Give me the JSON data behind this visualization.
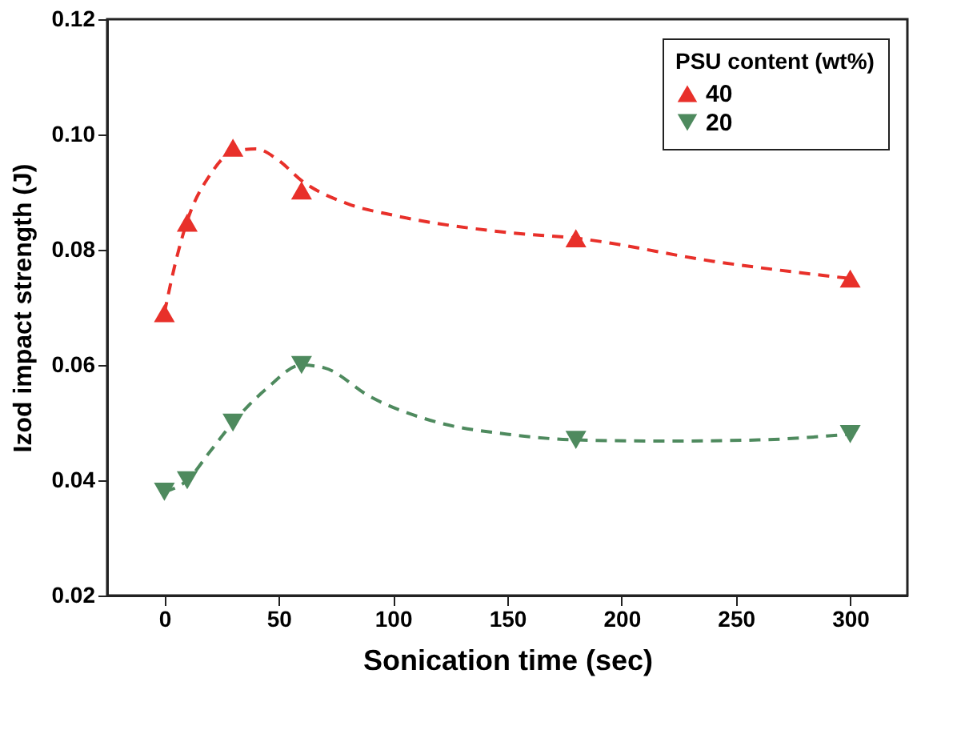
{
  "chart_data": {
    "type": "scatter",
    "xlabel": "Sonication time (sec)",
    "ylabel": "Izod impact strength (J)",
    "legend_title": "PSU content (wt%)",
    "xlim": [
      -25,
      325
    ],
    "xticks": [
      0,
      50,
      100,
      150,
      200,
      250,
      300
    ],
    "ylim": [
      0.02,
      0.12
    ],
    "yticks": [
      {
        "value": 0.02,
        "label": "0.02"
      },
      {
        "value": 0.04,
        "label": "0.04"
      },
      {
        "value": 0.06,
        "label": "0.06"
      },
      {
        "value": 0.08,
        "label": "0.08"
      },
      {
        "value": 0.1,
        "label": "0.10"
      },
      {
        "value": 0.12,
        "label": "0.12"
      }
    ],
    "grid": false,
    "legend": "top right",
    "series": [
      {
        "name": "40",
        "marker": "triangle",
        "color": "#e8302a",
        "x": [
          0,
          10,
          30,
          60,
          180,
          300
        ],
        "values": [
          0.069,
          0.0847,
          0.0977,
          0.0903,
          0.082,
          0.075
        ]
      },
      {
        "name": "20",
        "marker": "triangle-down",
        "color": "#4e8a5e",
        "x": [
          0,
          10,
          30,
          60,
          180,
          300
        ],
        "values": [
          0.038,
          0.04,
          0.05,
          0.06,
          0.047,
          0.048
        ]
      },
      {
        "type": "line",
        "line_style": "dashed",
        "marker": "none",
        "color": "#e8302a",
        "x": [
          0,
          5,
          10,
          20,
          30,
          40,
          50,
          60,
          80,
          100,
          150,
          180,
          240,
          300
        ],
        "values": [
          0.069,
          0.078,
          0.085,
          0.093,
          0.097,
          0.0975,
          0.0955,
          0.092,
          0.088,
          0.086,
          0.083,
          0.082,
          0.078,
          0.075
        ]
      },
      {
        "type": "line",
        "line_style": "dashed",
        "marker": "none",
        "color": "#4e8a5e",
        "x": [
          0,
          10,
          20,
          30,
          45,
          60,
          70,
          90,
          120,
          150,
          180,
          220,
          260,
          300
        ],
        "values": [
          0.038,
          0.04,
          0.045,
          0.05,
          0.056,
          0.06,
          0.0595,
          0.0545,
          0.05,
          0.048,
          0.047,
          0.0468,
          0.047,
          0.048
        ]
      }
    ]
  }
}
